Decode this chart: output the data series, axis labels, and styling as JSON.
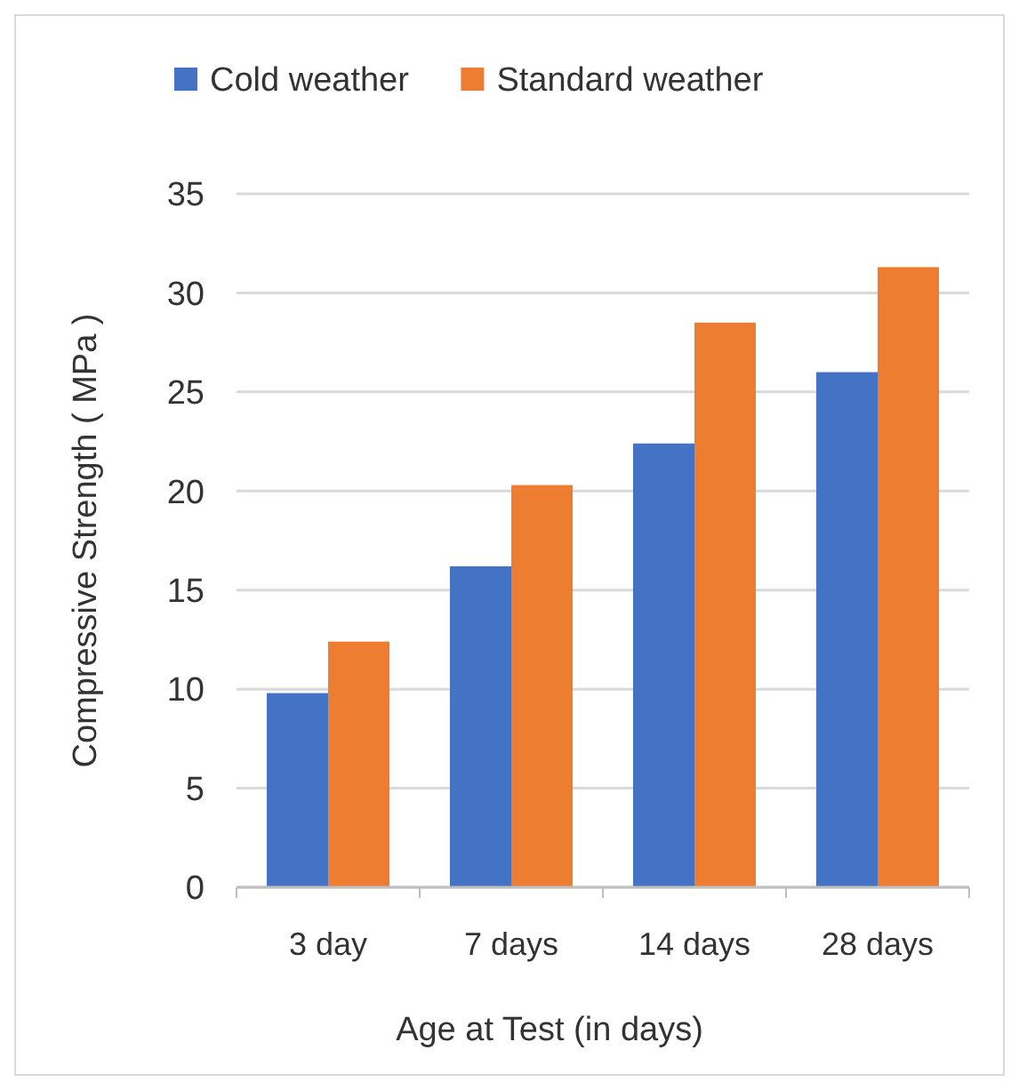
{
  "chart_data": {
    "type": "bar",
    "xlabel": "Age at Test (in days)",
    "ylabel": "Compressive Strength ( MPa )",
    "categories": [
      "3 day",
      "7 days",
      "14 days",
      "28 days"
    ],
    "series": [
      {
        "name": "Cold weather",
        "color": "#4472c4",
        "values": [
          9.8,
          16.2,
          22.4,
          26.0
        ]
      },
      {
        "name": "Standard weather",
        "color": "#ed7d31",
        "values": [
          12.4,
          20.3,
          28.5,
          31.3
        ]
      }
    ],
    "ylim": [
      0,
      35
    ],
    "yticks": [
      0,
      5,
      10,
      15,
      20,
      25,
      30,
      35
    ],
    "grid": "y",
    "legend": "top"
  }
}
